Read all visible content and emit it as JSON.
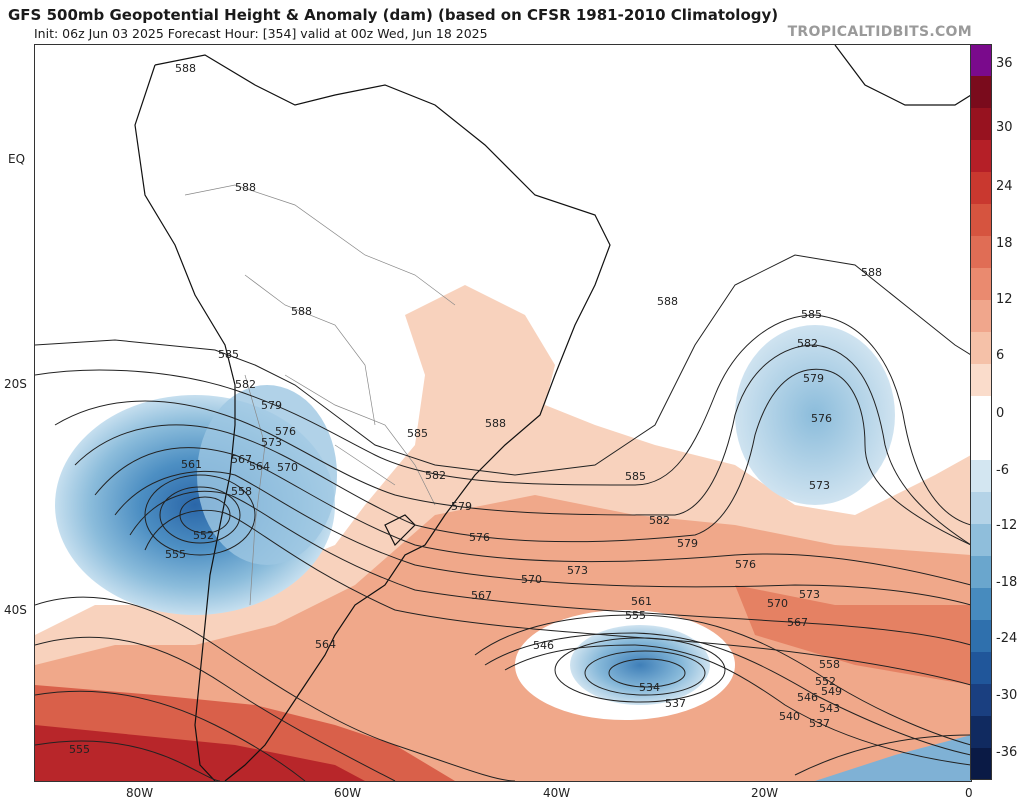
{
  "header": {
    "title": "GFS 500mb Geopotential Height & Anomaly (dam) (based on CFSR 1981-2010 Climatology)",
    "subtitle": "Init: 06z Jun 03 2025   Forecast Hour: [354]   valid at 00z Wed, Jun 18 2025",
    "brand": "TROPICALTIDBITS.COM"
  },
  "axes": {
    "lat_labels": [
      "EQ",
      "20S",
      "40S"
    ],
    "lon_labels": [
      "80W",
      "60W",
      "40W",
      "20W",
      "0"
    ]
  },
  "colorbar": {
    "labels": [
      "36",
      "30",
      "24",
      "18",
      "12",
      "6",
      "0",
      "-6",
      "-12",
      "-18",
      "-24",
      "-30",
      "-36"
    ],
    "colors": [
      "#7a0a8c",
      "#7a0b1c",
      "#97121f",
      "#b51f27",
      "#c9382f",
      "#d6543f",
      "#e06d55",
      "#ea8a6f",
      "#f0a68c",
      "#f5c1a8",
      "#fadccb",
      "#ffffff",
      "#ffffff",
      "#d3e6f1",
      "#b4d3e7",
      "#8fbedb",
      "#6aa6cd",
      "#478bbe",
      "#2f70ad",
      "#20569a",
      "#1a3f80",
      "#102a60",
      "#0a1a45"
    ]
  },
  "contour_labels": [
    "588",
    "588",
    "588",
    "588",
    "588",
    "588",
    "585",
    "585",
    "585",
    "585",
    "582",
    "582",
    "582",
    "582",
    "579",
    "579",
    "579",
    "579",
    "576",
    "576",
    "576",
    "576",
    "573",
    "573",
    "573",
    "573",
    "570",
    "570",
    "570",
    "567",
    "567",
    "567",
    "564",
    "564",
    "561",
    "561",
    "558",
    "558",
    "555",
    "555",
    "555",
    "552",
    "552",
    "549",
    "546",
    "546",
    "543",
    "540",
    "537",
    "537",
    "534"
  ]
}
